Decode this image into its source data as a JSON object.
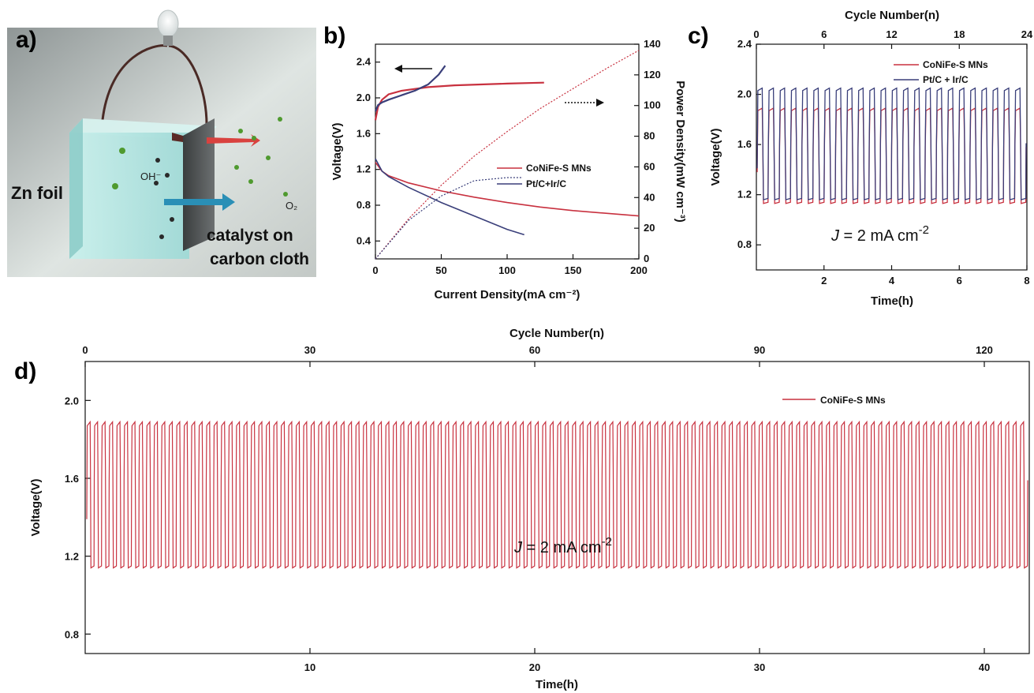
{
  "panels": {
    "a": {
      "label": "a)"
    },
    "b": {
      "label": "b)"
    },
    "c": {
      "label": "c)"
    },
    "d": {
      "label": "d)"
    }
  },
  "scene": {
    "zn_label": "Zn foil",
    "oh_label": "OH⁻",
    "o2_label": "O₂",
    "catalyst_line1": "catalyst on",
    "catalyst_line2": "carbon cloth"
  },
  "colors": {
    "red": "#c8313f",
    "blue": "#3a3f7a",
    "axis": "#111111",
    "tank": "#a7e3e0"
  },
  "chart_data": [
    {
      "id": "b",
      "type": "line",
      "xlabel": "Current Density(mA cm⁻²)",
      "ylabel": "Voltage(V)",
      "y2label": "Power Density(mW cm⁻³)",
      "xlim": [
        0,
        200
      ],
      "ylim": [
        0.2,
        2.6
      ],
      "y2lim": [
        0,
        140
      ],
      "xticks": [
        0,
        50,
        100,
        150,
        200
      ],
      "yticks": [
        0.4,
        0.8,
        1.2,
        1.6,
        2.0,
        2.4
      ],
      "y2ticks": [
        0,
        20,
        40,
        60,
        80,
        100,
        120,
        140
      ],
      "legend": [
        "CoNiFe-S MNs",
        "Pt/C+Ir/C"
      ],
      "legend_position": "right",
      "series": [
        {
          "name": "CoNiFe-S MNs",
          "kind": "charge",
          "axis": "left",
          "x": [
            0,
            2,
            5,
            10,
            20,
            40,
            60,
            80,
            100,
            128
          ],
          "y": [
            1.75,
            1.9,
            1.98,
            2.04,
            2.08,
            2.12,
            2.14,
            2.15,
            2.16,
            2.17
          ]
        },
        {
          "name": "Pt/C+Ir/C",
          "kind": "charge",
          "axis": "left",
          "x": [
            0,
            2,
            5,
            10,
            20,
            30,
            40,
            48,
            53
          ],
          "y": [
            1.85,
            1.92,
            1.95,
            1.98,
            2.03,
            2.08,
            2.15,
            2.26,
            2.36
          ]
        },
        {
          "name": "CoNiFe-S MNs",
          "kind": "discharge",
          "axis": "left",
          "x": [
            0,
            5,
            10,
            25,
            50,
            75,
            100,
            125,
            150,
            175,
            200
          ],
          "y": [
            1.28,
            1.18,
            1.13,
            1.05,
            0.96,
            0.89,
            0.83,
            0.78,
            0.74,
            0.71,
            0.68
          ]
        },
        {
          "name": "Pt/C+Ir/C",
          "kind": "discharge",
          "axis": "left",
          "x": [
            0,
            5,
            10,
            25,
            50,
            75,
            100,
            113
          ],
          "y": [
            1.32,
            1.18,
            1.12,
            1.0,
            0.83,
            0.68,
            0.53,
            0.47
          ]
        },
        {
          "name": "CoNiFe-S MNs",
          "kind": "power",
          "axis": "right",
          "x": [
            0,
            25,
            50,
            75,
            100,
            125,
            150,
            175,
            200
          ],
          "y": [
            0,
            26,
            48,
            67,
            83,
            98,
            111,
            124,
            136
          ]
        },
        {
          "name": "Pt/C+Ir/C",
          "kind": "power",
          "axis": "right",
          "x": [
            0,
            25,
            50,
            75,
            100,
            112
          ],
          "y": [
            0,
            25,
            41,
            51,
            53,
            53
          ]
        }
      ],
      "annotations": [
        "left-arrow",
        "right-arrow"
      ]
    },
    {
      "id": "c",
      "type": "line",
      "xlabel": "Time(h)",
      "ylabel": "Voltage(V)",
      "x2label": "Cycle Number(n)",
      "xlim": [
        0,
        8
      ],
      "ylim": [
        0.6,
        2.4
      ],
      "x2lim": [
        0,
        24
      ],
      "xticks": [
        2,
        4,
        6,
        8
      ],
      "x2ticks": [
        0,
        6,
        12,
        18,
        24
      ],
      "yticks": [
        0.8,
        1.2,
        1.6,
        2.0,
        2.4
      ],
      "legend": [
        "CoNiFe-S MNs",
        "Pt/C + Ir/C"
      ],
      "legend_position": "top-right",
      "annotation": "J = 2 mA cm⁻²",
      "series": [
        {
          "name": "CoNiFe-S MNs",
          "cycles": 24,
          "v_charge": 1.89,
          "v_discharge": 1.13
        },
        {
          "name": "Pt/C + Ir/C",
          "cycles": 24,
          "v_charge": 2.05,
          "v_discharge": 1.16
        }
      ]
    },
    {
      "id": "d",
      "type": "line",
      "xlabel": "Time(h)",
      "ylabel": "Voltage(V)",
      "x2label": "Cycle Number(n)",
      "xlim": [
        0,
        42
      ],
      "ylim": [
        0.7,
        2.2
      ],
      "x2lim": [
        0,
        126
      ],
      "xticks": [
        10,
        20,
        30,
        40
      ],
      "x2ticks": [
        0,
        30,
        60,
        90,
        120
      ],
      "yticks": [
        0.8,
        1.2,
        1.6,
        2.0
      ],
      "legend": [
        "CoNiFe-S MNs"
      ],
      "legend_position": "top-right",
      "annotation": "J = 2 mA cm⁻²",
      "series": [
        {
          "name": "CoNiFe-S MNs",
          "cycles": 126,
          "v_charge": 1.89,
          "v_discharge": 1.14
        }
      ]
    }
  ]
}
